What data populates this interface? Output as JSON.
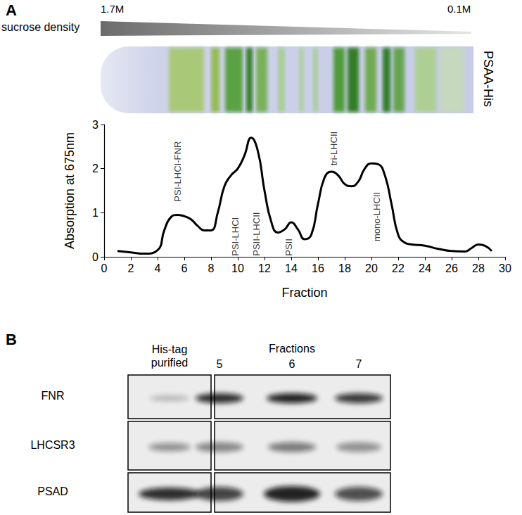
{
  "chart_data": {
    "type": "line",
    "x_label": "Fraction",
    "y_label": "Absorption at 675nm",
    "x": [
      1,
      2,
      3,
      4,
      4.5,
      5,
      5.5,
      6,
      6.5,
      7,
      7.5,
      8,
      8.5,
      9,
      9.5,
      10,
      10.5,
      11,
      11.5,
      12,
      12.5,
      13,
      13.5,
      14,
      14.5,
      15,
      15.5,
      16,
      16.5,
      17,
      17.5,
      18,
      18.5,
      19,
      19.5,
      20,
      20.5,
      21,
      21.5,
      22,
      22.5,
      23,
      24,
      25,
      26,
      27,
      27.5,
      28,
      28.5,
      29
    ],
    "values": [
      0.13,
      0.1,
      0.07,
      0.15,
      0.6,
      0.9,
      0.95,
      0.92,
      0.85,
      0.7,
      0.6,
      0.6,
      1.0,
      1.6,
      1.85,
      2.0,
      2.3,
      2.7,
      2.4,
      1.5,
      0.8,
      0.55,
      0.62,
      0.78,
      0.62,
      0.4,
      0.5,
      1.2,
      1.8,
      1.93,
      1.85,
      1.65,
      1.6,
      1.7,
      2.0,
      2.12,
      2.1,
      1.85,
      1.2,
      0.5,
      0.32,
      0.28,
      0.25,
      0.18,
      0.13,
      0.12,
      0.2,
      0.28,
      0.25,
      0.13
    ],
    "color": "#000000",
    "xlim": [
      0,
      30
    ],
    "xticks": [
      0,
      2,
      4,
      6,
      8,
      10,
      12,
      14,
      16,
      18,
      20,
      22,
      24,
      26,
      28,
      30
    ],
    "ylim": [
      0,
      3
    ],
    "yticks": [
      0,
      1,
      2,
      3
    ],
    "grid": false,
    "annotations": [
      {
        "text": "PSI-LHCI-FNR",
        "x": 5.5,
        "y": 1.25
      },
      {
        "text": "PSI-LHCI",
        "x": 9.8,
        "y": 0.02
      },
      {
        "text": "PSII-LHCII",
        "x": 11.4,
        "y": 0.02
      },
      {
        "text": "PSII",
        "x": 13.8,
        "y": 0.02
      },
      {
        "text": "tri-LHCII",
        "x": 17.2,
        "y": 2.07
      },
      {
        "text": "mono-LHCII",
        "x": 20.4,
        "y": 0.35
      }
    ]
  },
  "panel_labels": [
    "A",
    "B"
  ],
  "gradient": {
    "label": "sucrose density",
    "start": "1.7M",
    "end": "0.1M"
  },
  "tube_label": "PSAA-His",
  "blot": {
    "left_lane": "His-tag purified",
    "group": "Fractions",
    "fractions": [
      "5",
      "6",
      "7"
    ],
    "rows": [
      "FNR",
      "LHCSR3",
      "PSAD"
    ]
  }
}
